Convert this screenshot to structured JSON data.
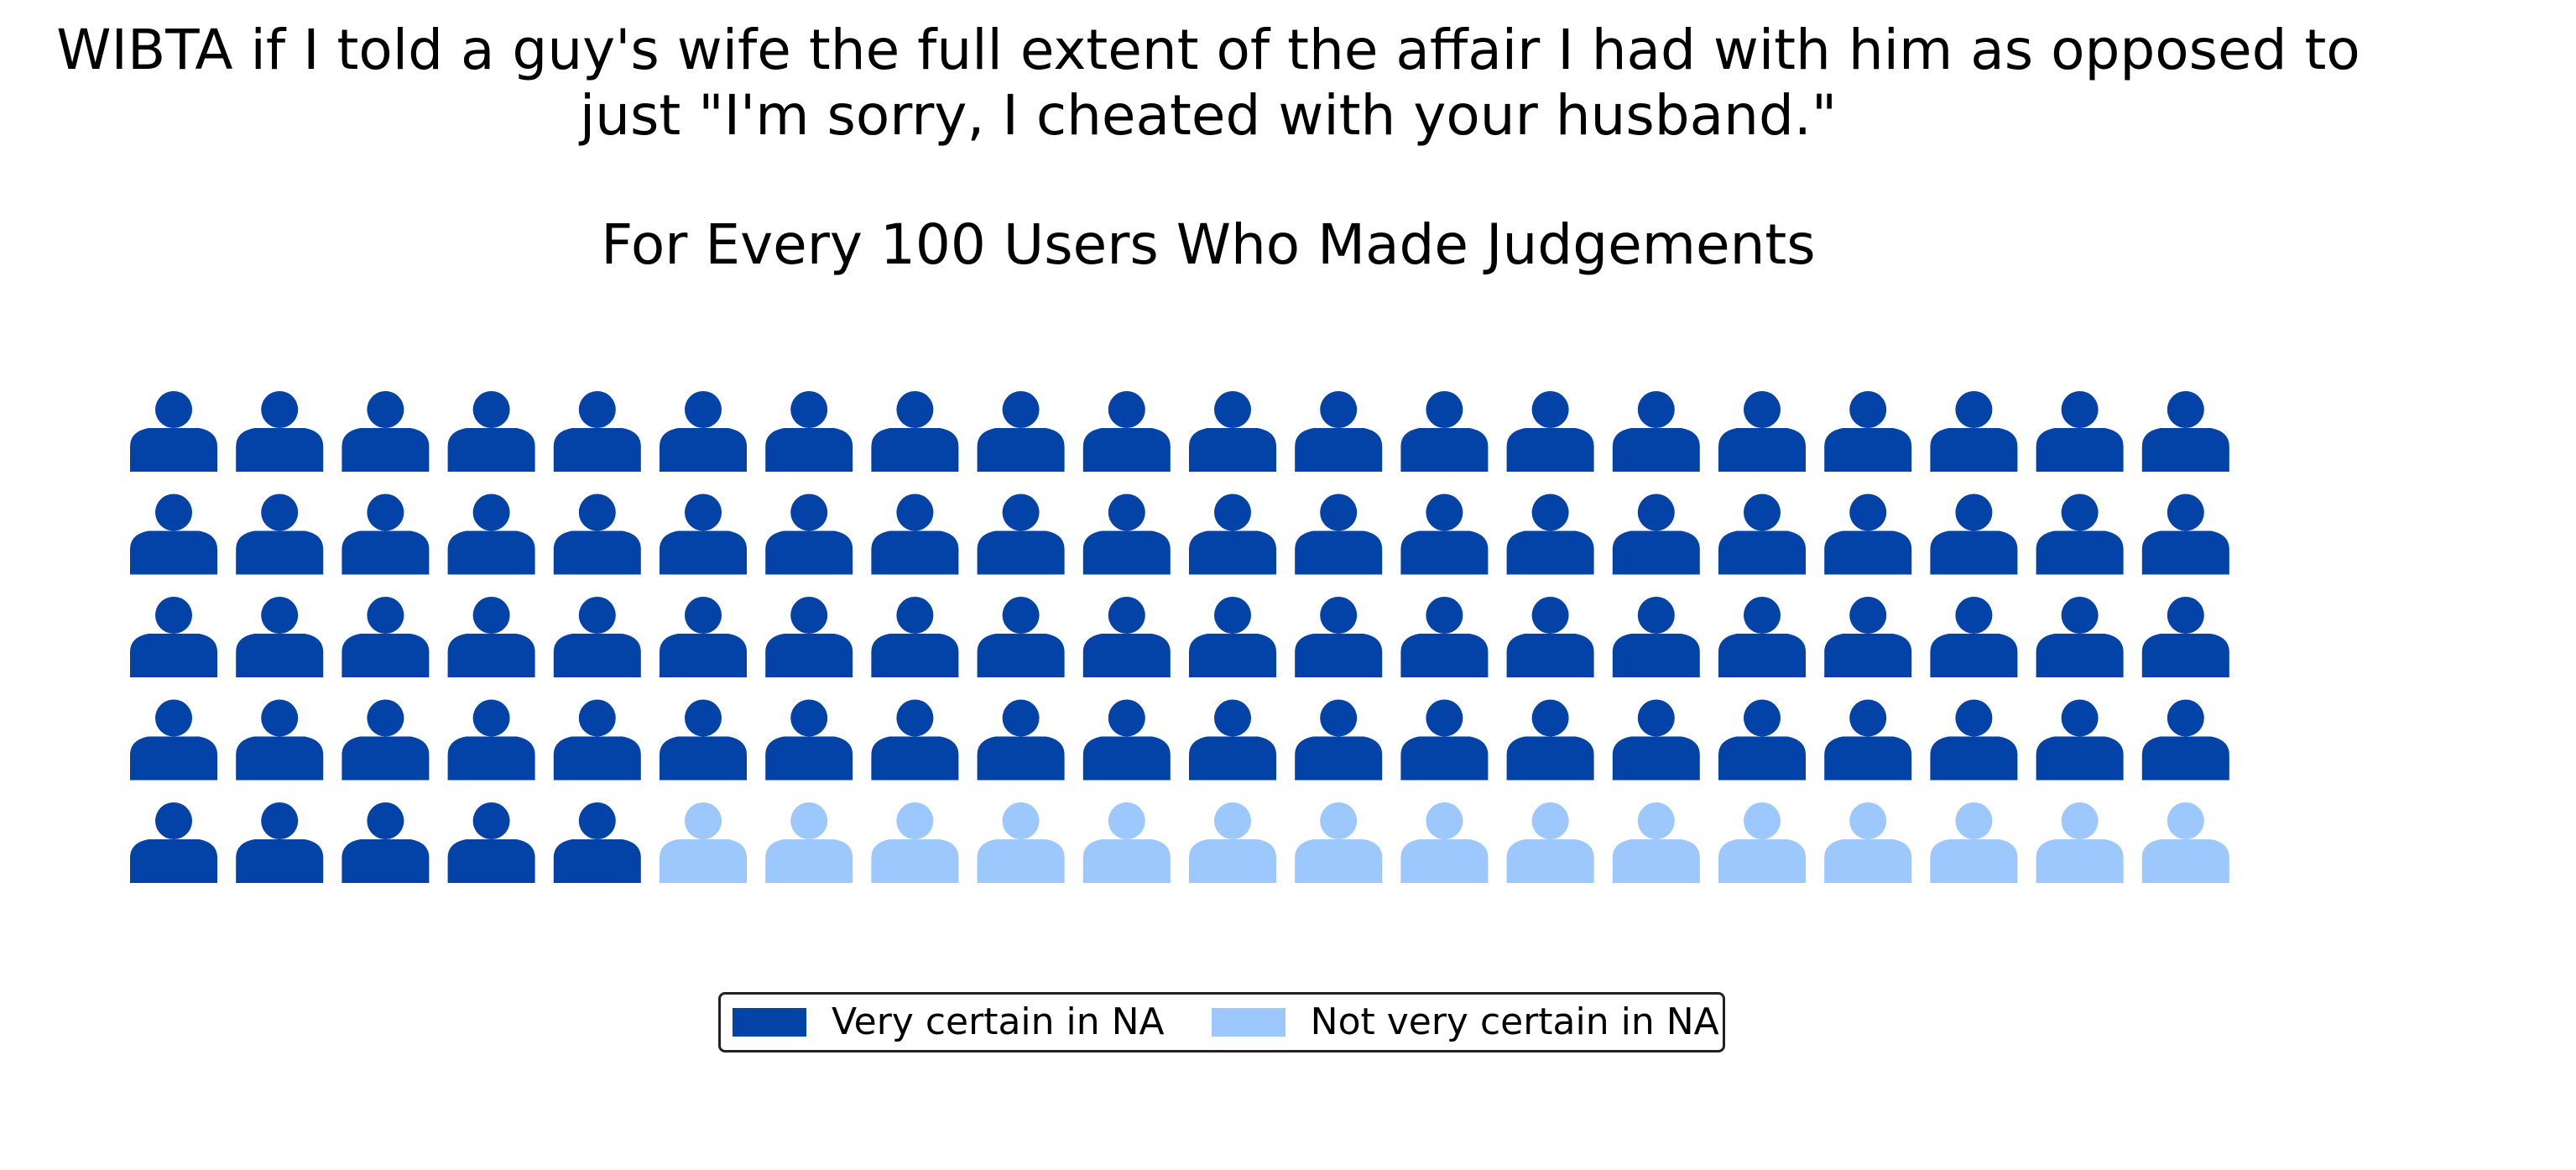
{
  "chart_data": {
    "type": "waffle",
    "title_lines": [
      "WIBTA if I told a guy's wife the full extent of the affair I had with him as opposed to",
      "just \"I'm sorry, I cheated with your husband.\""
    ],
    "subtitle": "For Every 100 Users Who Made Judgements",
    "rows": 5,
    "columns": 20,
    "total": 100,
    "icon": "person-icon",
    "series": [
      {
        "name": "Very certain in NA",
        "value": 85,
        "color": "#0343a8"
      },
      {
        "name": "Not very certain in NA",
        "value": 15,
        "color": "#9dc8fd"
      }
    ],
    "legend_position": "bottom-center"
  }
}
